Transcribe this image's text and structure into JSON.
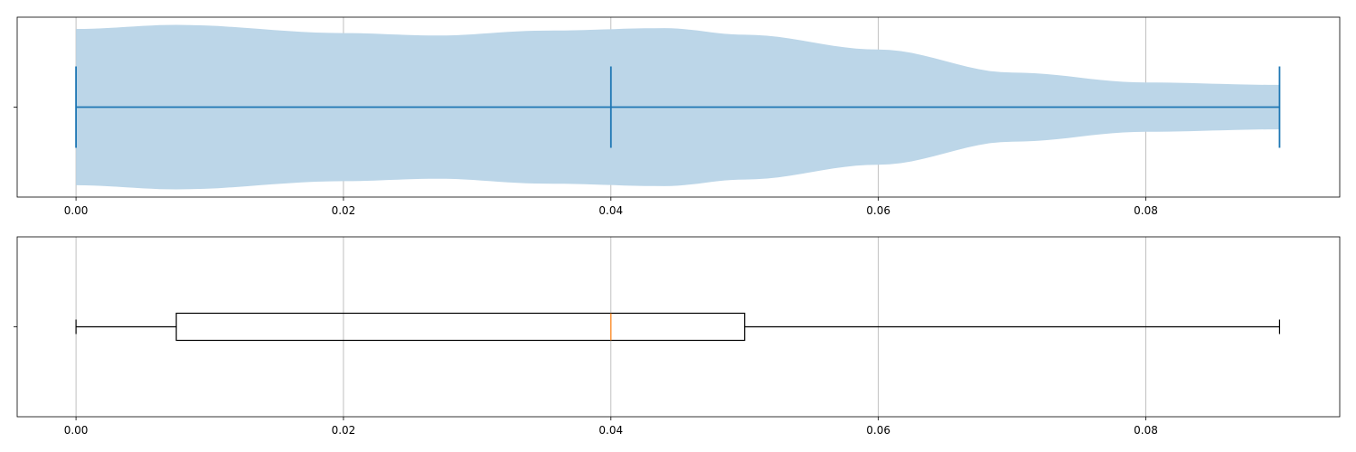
{
  "chart_data": [
    {
      "type": "violin",
      "orientation": "horizontal",
      "xlim": [
        -0.0044,
        0.0945
      ],
      "xticks": [
        0.0,
        0.02,
        0.04,
        0.06,
        0.08
      ],
      "xtick_labels": [
        "0.00",
        "0.02",
        "0.04",
        "0.06",
        "0.08"
      ],
      "grid": "vertical",
      "series": [
        {
          "min": 0.0,
          "median": 0.04,
          "max": 0.09,
          "density": {
            "x": [
              0.0,
              0.0075,
              0.02,
              0.027,
              0.035,
              0.044,
              0.05,
              0.06,
              0.07,
              0.08,
              0.09
            ],
            "halfwidth": [
              0.95,
              1.0,
              0.9,
              0.87,
              0.93,
              0.96,
              0.88,
              0.7,
              0.42,
              0.3,
              0.27
            ]
          },
          "color": "#1f77b4",
          "fill_color": "#bcd6e8"
        }
      ]
    },
    {
      "type": "box",
      "orientation": "horizontal",
      "xlim": [
        -0.0044,
        0.0945
      ],
      "xticks": [
        0.0,
        0.02,
        0.04,
        0.06,
        0.08
      ],
      "xtick_labels": [
        "0.00",
        "0.02",
        "0.04",
        "0.06",
        "0.08"
      ],
      "grid": "vertical",
      "series": [
        {
          "whisker_low": 0.0,
          "q1": 0.0075,
          "median": 0.04,
          "q3": 0.05,
          "whisker_high": 0.09,
          "box_color": "#000000",
          "median_color": "#ff7f0e"
        }
      ]
    }
  ]
}
